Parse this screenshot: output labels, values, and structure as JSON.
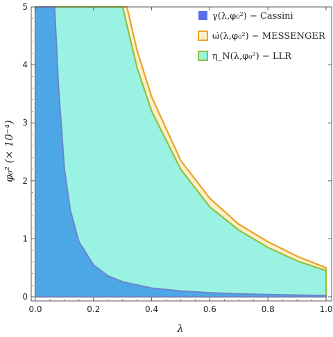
{
  "chart_data": {
    "type": "area",
    "xlabel": "λ",
    "ylabel": "φ₀² (× 10⁻⁴)",
    "xlim": [
      0,
      1
    ],
    "ylim": [
      0,
      5
    ],
    "x_ticks": [
      "0.0",
      "0.2",
      "0.4",
      "0.6",
      "0.8",
      "1.0"
    ],
    "y_ticks": [
      "0",
      "1",
      "2",
      "3",
      "4",
      "5"
    ],
    "grid": false,
    "legend_placement": "top-right",
    "series": [
      {
        "name": "γ(λ,φ₀²) − Cassini",
        "fill": "#4da6e6",
        "stroke": "#6b86c9",
        "legend_swatch": "#5c6fe8",
        "upper_boundary": [
          [
            0.066,
            5.0
          ],
          [
            0.08,
            3.6
          ],
          [
            0.1,
            2.2
          ],
          [
            0.12,
            1.5
          ],
          [
            0.15,
            0.95
          ],
          [
            0.2,
            0.55
          ],
          [
            0.25,
            0.36
          ],
          [
            0.3,
            0.26
          ],
          [
            0.4,
            0.15
          ],
          [
            0.5,
            0.1
          ],
          [
            0.6,
            0.07
          ],
          [
            0.7,
            0.05
          ],
          [
            0.8,
            0.04
          ],
          [
            0.9,
            0.03
          ],
          [
            1.0,
            0.02
          ]
        ]
      },
      {
        "name": "ω̇(λ,φ₀²) − MESSENGER",
        "fill": "#faeecb",
        "stroke": "#e9a324",
        "legend_swatch": "#faeecb",
        "upper_boundary": [
          [
            0.0,
            5.0
          ],
          [
            0.315,
            5.0
          ],
          [
            0.35,
            4.25
          ],
          [
            0.4,
            3.45
          ],
          [
            0.5,
            2.35
          ],
          [
            0.6,
            1.7
          ],
          [
            0.7,
            1.25
          ],
          [
            0.8,
            0.95
          ],
          [
            0.9,
            0.7
          ],
          [
            1.0,
            0.5
          ]
        ]
      },
      {
        "name": "η_N(λ,φ₀²) − LLR",
        "fill": "#9af2e2",
        "stroke": "#8fc23a",
        "legend_swatch": "#9af2e2",
        "upper_boundary": [
          [
            0.0,
            5.0
          ],
          [
            0.3,
            5.0
          ],
          [
            0.35,
            3.95
          ],
          [
            0.4,
            3.2
          ],
          [
            0.5,
            2.2
          ],
          [
            0.6,
            1.55
          ],
          [
            0.7,
            1.15
          ],
          [
            0.8,
            0.85
          ],
          [
            0.9,
            0.62
          ],
          [
            1.0,
            0.45
          ]
        ]
      }
    ]
  }
}
